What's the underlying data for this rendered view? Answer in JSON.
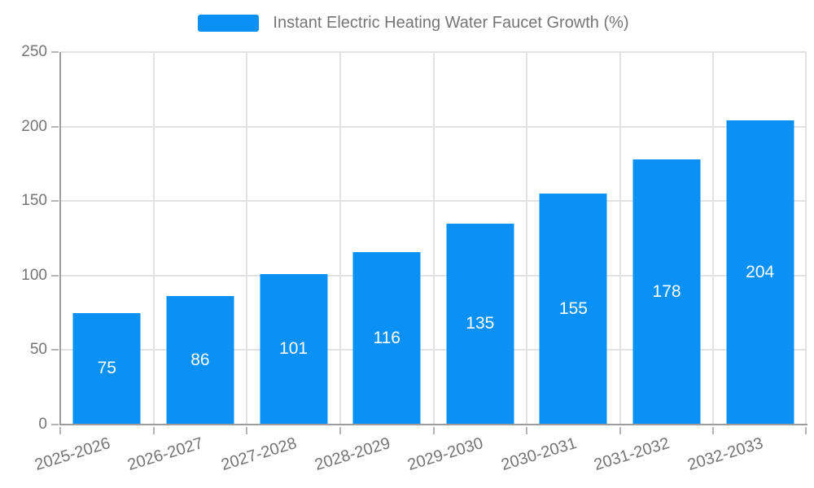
{
  "chart_data": {
    "type": "bar",
    "title": "Instant Electric Heating Water Faucet Growth (%)",
    "legend_entries": [
      "Instant Electric Heating Water Faucet Growth (%)"
    ],
    "legend_position": "top-center",
    "categories": [
      "2025-2026",
      "2026-2027",
      "2027-2028",
      "2028-2029",
      "2029-2030",
      "2030-2031",
      "2031-2032",
      "2032-2033"
    ],
    "values": [
      75,
      86,
      101,
      116,
      135,
      155,
      178,
      204
    ],
    "xlabel": "",
    "ylabel": "",
    "ylim": [
      0,
      250
    ],
    "yticks": [
      0,
      50,
      100,
      150,
      200,
      250
    ],
    "grid": true,
    "value_labels_position": "inside-center",
    "x_tick_label_rotation_deg": -17
  },
  "style": {
    "bar_color": "#0b90f5",
    "value_label_color": "#ffffff",
    "axis_text_color": "#757575",
    "grid_color": "#e2e2e2",
    "spine_color": "#9c9c9c",
    "tick_color": "#b5b5b5",
    "background": "#ffffff"
  }
}
